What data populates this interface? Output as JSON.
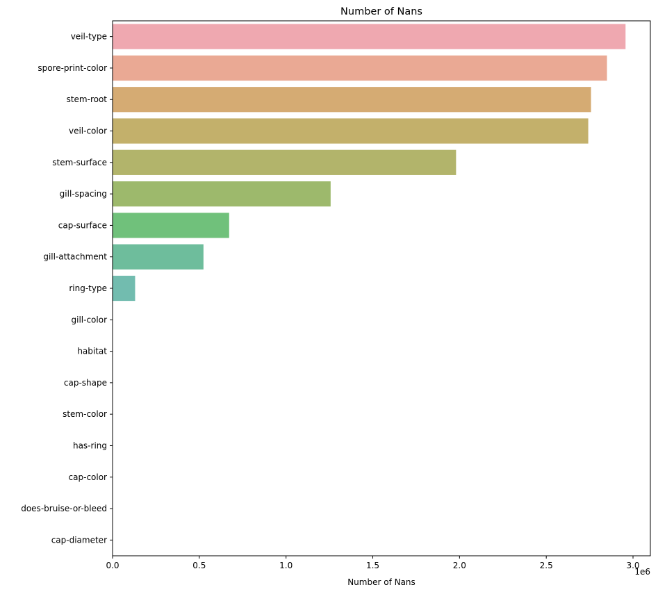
{
  "chart_data": {
    "type": "bar",
    "orientation": "horizontal",
    "title": "Number of Nans",
    "xlabel": "Number of Nans",
    "ylabel": "",
    "x_scale_label": "1e6",
    "xlim": [
      0,
      3.1
    ],
    "x_ticks": [
      0.0,
      0.5,
      1.0,
      1.5,
      2.0,
      2.5,
      3.0
    ],
    "x_tick_labels": [
      "0.0",
      "0.5",
      "1.0",
      "1.5",
      "2.0",
      "2.5",
      "3.0"
    ],
    "grid": false,
    "categories": [
      "veil-type",
      "spore-print-color",
      "stem-root",
      "veil-color",
      "stem-surface",
      "gill-spacing",
      "cap-surface",
      "gill-attachment",
      "ring-type",
      "gill-color",
      "habitat",
      "cap-shape",
      "stem-color",
      "has-ring",
      "cap-color",
      "does-bruise-or-bleed",
      "cap-diameter"
    ],
    "values": [
      2.957,
      2.85,
      2.758,
      2.742,
      1.98,
      1.257,
      0.672,
      0.524,
      0.13,
      0.0,
      0.0,
      0.0,
      0.0,
      0.0,
      0.0,
      0.0,
      0.0
    ],
    "colors": [
      "#efa8b0",
      "#eaa994",
      "#d5ab73",
      "#c3b06b",
      "#b2b46b",
      "#9db96c",
      "#70c17b",
      "#6ebd9c",
      "#72bcaf",
      "#74b9c3",
      "#77b5d7",
      "#8eaee4",
      "#b2a6e6",
      "#d1a0e5",
      "#e49fd7",
      "#eda2c4",
      "#f0a6b4"
    ]
  }
}
